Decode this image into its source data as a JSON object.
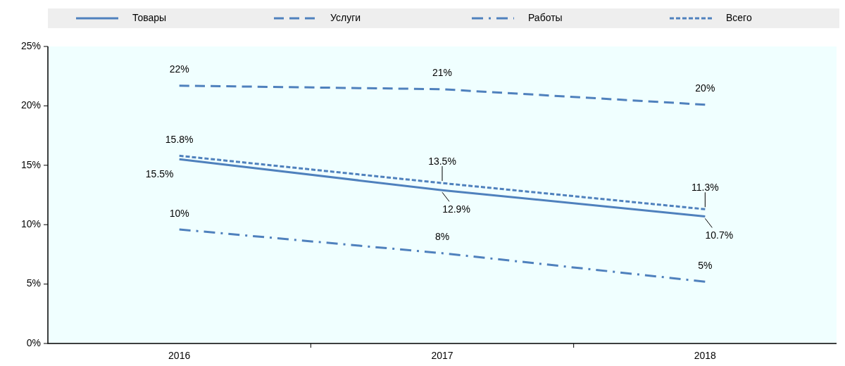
{
  "chart_data": {
    "type": "line",
    "categories": [
      "2016",
      "2017",
      "2018"
    ],
    "series": [
      {
        "name": "Товары",
        "color": "#4f81bd",
        "line_style": "solid",
        "values": [
          15.5,
          12.9,
          10.7
        ],
        "value_labels": [
          "15.5%",
          "12.9%",
          "10.7%"
        ]
      },
      {
        "name": "Услуги",
        "color": "#4f81bd",
        "line_style": "dashed",
        "values": [
          21.7,
          21.4,
          20.1
        ],
        "value_labels": [
          "22%",
          "21%",
          "20%"
        ]
      },
      {
        "name": "Работы",
        "color": "#4f81bd",
        "line_style": "dashdot",
        "values": [
          9.6,
          7.6,
          5.2
        ],
        "value_labels": [
          "10%",
          "8%",
          "5%"
        ]
      },
      {
        "name": "Всего",
        "color": "#4f81bd",
        "line_style": "dotted",
        "values": [
          15.8,
          13.5,
          11.3
        ],
        "value_labels": [
          "15.8%",
          "13.5%",
          "11.3%"
        ]
      }
    ],
    "ylim": [
      0,
      25
    ],
    "yticks": [
      {
        "value": 0,
        "label": "0%"
      },
      {
        "value": 5,
        "label": "5%"
      },
      {
        "value": 10,
        "label": "10%"
      },
      {
        "value": 15,
        "label": "15%"
      },
      {
        "value": 20,
        "label": "20%"
      },
      {
        "value": 25,
        "label": "25%"
      }
    ],
    "grid": false,
    "legend": "top",
    "marker": "none"
  }
}
